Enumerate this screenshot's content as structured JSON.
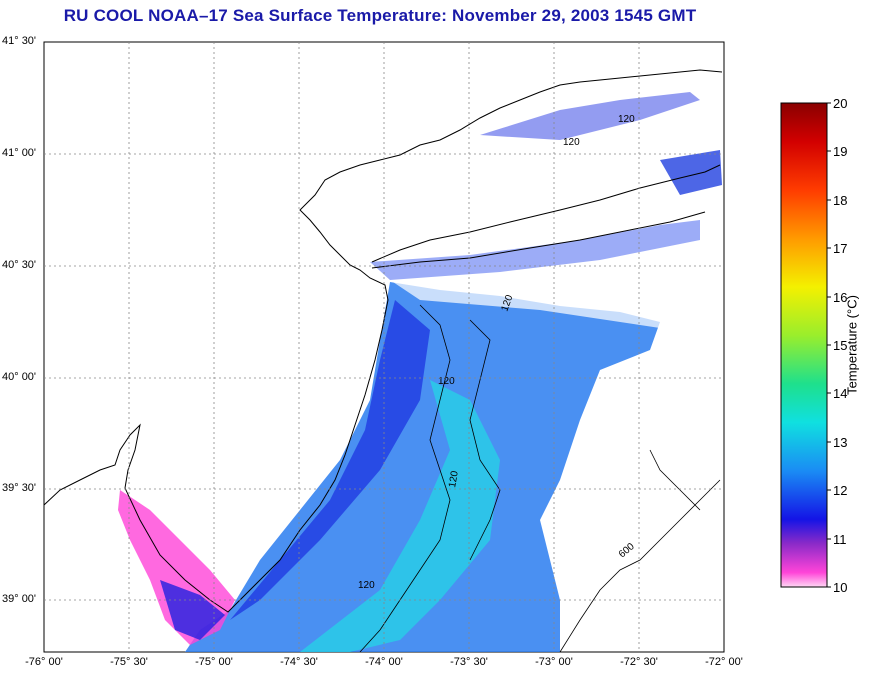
{
  "title": "RU COOL  NOAA–17  Sea Surface Temperature:  November 29, 2003 1545 GMT",
  "lat_labels": [
    "41° 30'",
    "41° 00'",
    "40° 30'",
    "40° 00'",
    "39° 30'",
    "39° 00'"
  ],
  "lon_labels": [
    "-76° 00'",
    "-75° 30'",
    "-75° 00'",
    "-74° 30'",
    "-74° 00'",
    "-73° 30'",
    "-73° 00'",
    "-72° 30'",
    "-72° 00'"
  ],
  "contour_labels": [
    "120",
    "120",
    "120",
    "120",
    "120",
    "120",
    "600"
  ],
  "colorbar": {
    "ticks": [
      "20",
      "19",
      "18",
      "17",
      "16",
      "15",
      "14",
      "13",
      "12",
      "11",
      "10"
    ],
    "label": "Temperature (°C)"
  },
  "colors": {
    "title": "#1a1aa8",
    "land": "#ffffff",
    "warmest": "#8a0000",
    "coldest": "#ff44d8"
  }
}
